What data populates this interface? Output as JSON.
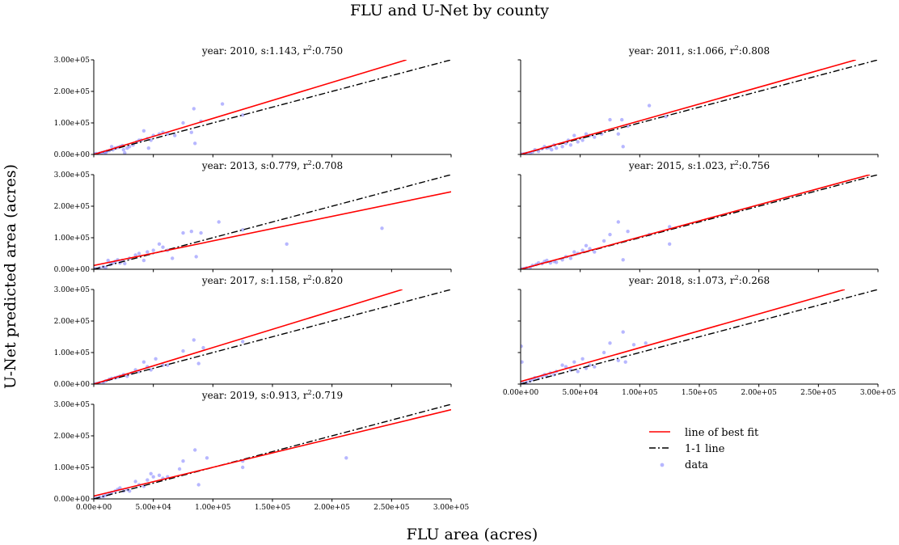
{
  "figure": {
    "title": "FLU and U-Net by county",
    "xlabel": "FLU area (acres)",
    "ylabel": "U-Net predicted area (acres)"
  },
  "legend": {
    "items": [
      {
        "label": "line of best fit",
        "color": "#ff0000",
        "style": "solid"
      },
      {
        "label": "1-1 line",
        "color": "#000000",
        "style": "dashdot"
      },
      {
        "label": "data",
        "color": "#7b7bff",
        "style": "marker"
      }
    ]
  },
  "colors": {
    "fit": "#ff0000",
    "identity": "#000000",
    "data": "#7b7bff"
  },
  "chart_data": [
    {
      "type": "scatter",
      "year_label": "year: 2010, s:1.143, r",
      "r2_value": ":0.750",
      "slope": 1.143,
      "xlim": [
        0,
        300000
      ],
      "ylim": [
        0,
        300000
      ],
      "yticks": [
        "0.00e+00",
        "1.00e+05",
        "2.00e+05",
        "3.00e+05"
      ],
      "xticks": [],
      "fit": {
        "intercept": 0
      },
      "points": [
        [
          1000,
          1000
        ],
        [
          2000,
          2500
        ],
        [
          3000,
          1500
        ],
        [
          5000,
          4000
        ],
        [
          7000,
          6000
        ],
        [
          9000,
          8000
        ],
        [
          10000,
          5000
        ],
        [
          11000,
          10000
        ],
        [
          13000,
          12000
        ],
        [
          15000,
          25000
        ],
        [
          16000,
          15000
        ],
        [
          18000,
          20000
        ],
        [
          20000,
          22000
        ],
        [
          22000,
          25000
        ],
        [
          24000,
          28000
        ],
        [
          25000,
          15000
        ],
        [
          26000,
          5000
        ],
        [
          28000,
          20000
        ],
        [
          30000,
          25000
        ],
        [
          33000,
          30000
        ],
        [
          36000,
          40000
        ],
        [
          38000,
          45000
        ],
        [
          40000,
          45000
        ],
        [
          42000,
          75000
        ],
        [
          45000,
          50000
        ],
        [
          46000,
          20000
        ],
        [
          48000,
          45000
        ],
        [
          50000,
          60000
        ],
        [
          55000,
          65000
        ],
        [
          58000,
          70000
        ],
        [
          62000,
          65000
        ],
        [
          68000,
          60000
        ],
        [
          75000,
          100000
        ],
        [
          82000,
          70000
        ],
        [
          84000,
          145000
        ],
        [
          85000,
          35000
        ],
        [
          90000,
          105000
        ],
        [
          108000,
          160000
        ],
        [
          125000,
          125000
        ]
      ]
    },
    {
      "type": "scatter",
      "year_label": "year: 2011, s:1.066, r",
      "r2_value": ":0.808",
      "slope": 1.066,
      "xlim": [
        0,
        300000
      ],
      "ylim": [
        0,
        300000
      ],
      "yticks": [],
      "xticks": [],
      "fit": {
        "intercept": 0
      },
      "points": [
        [
          1000,
          1000
        ],
        [
          3000,
          2000
        ],
        [
          5000,
          3000
        ],
        [
          8000,
          5000
        ],
        [
          10000,
          8000
        ],
        [
          12000,
          15000
        ],
        [
          15000,
          10000
        ],
        [
          18000,
          18000
        ],
        [
          20000,
          25000
        ],
        [
          22000,
          20000
        ],
        [
          24000,
          22000
        ],
        [
          26000,
          15000
        ],
        [
          28000,
          30000
        ],
        [
          30000,
          20000
        ],
        [
          35000,
          25000
        ],
        [
          38000,
          35000
        ],
        [
          40000,
          45000
        ],
        [
          42000,
          30000
        ],
        [
          45000,
          60000
        ],
        [
          48000,
          40000
        ],
        [
          52000,
          45000
        ],
        [
          55000,
          65000
        ],
        [
          58000,
          60000
        ],
        [
          62000,
          55000
        ],
        [
          68000,
          65000
        ],
        [
          75000,
          110000
        ],
        [
          82000,
          65000
        ],
        [
          85000,
          110000
        ],
        [
          86000,
          25000
        ],
        [
          90000,
          90000
        ],
        [
          108000,
          155000
        ],
        [
          122000,
          120000
        ]
      ]
    },
    {
      "type": "scatter",
      "year_label": "year: 2013, s:0.779, r",
      "r2_value": ":0.708",
      "slope": 0.779,
      "xlim": [
        0,
        300000
      ],
      "ylim": [
        0,
        300000
      ],
      "yticks": [
        "0.00e+00",
        "1.00e+05",
        "2.00e+05",
        "3.00e+05"
      ],
      "xticks": [],
      "fit": {
        "intercept": 12000
      },
      "points": [
        [
          1000,
          2000
        ],
        [
          3000,
          1000
        ],
        [
          5000,
          4000
        ],
        [
          8000,
          8000
        ],
        [
          10000,
          5000
        ],
        [
          12000,
          28000
        ],
        [
          14000,
          15000
        ],
        [
          16000,
          20000
        ],
        [
          18000,
          25000
        ],
        [
          20000,
          30000
        ],
        [
          22000,
          20000
        ],
        [
          24000,
          28000
        ],
        [
          26000,
          18000
        ],
        [
          30000,
          35000
        ],
        [
          35000,
          45000
        ],
        [
          38000,
          50000
        ],
        [
          42000,
          28000
        ],
        [
          45000,
          55000
        ],
        [
          50000,
          60000
        ],
        [
          55000,
          80000
        ],
        [
          58000,
          70000
        ],
        [
          62000,
          60000
        ],
        [
          66000,
          35000
        ],
        [
          75000,
          115000
        ],
        [
          82000,
          120000
        ],
        [
          86000,
          40000
        ],
        [
          90000,
          115000
        ],
        [
          105000,
          150000
        ],
        [
          125000,
          125000
        ],
        [
          162000,
          80000
        ],
        [
          242000,
          130000
        ]
      ]
    },
    {
      "type": "scatter",
      "year_label": "year: 2015, s:1.023, r",
      "r2_value": ":0.756",
      "slope": 1.023,
      "xlim": [
        0,
        300000
      ],
      "ylim": [
        0,
        300000
      ],
      "yticks": [],
      "xticks": [],
      "fit": {
        "intercept": 0
      },
      "points": [
        [
          1000,
          1000
        ],
        [
          3000,
          2000
        ],
        [
          5000,
          4000
        ],
        [
          8000,
          6000
        ],
        [
          10000,
          12000
        ],
        [
          13000,
          15000
        ],
        [
          15000,
          20000
        ],
        [
          18000,
          18000
        ],
        [
          20000,
          25000
        ],
        [
          22000,
          28000
        ],
        [
          25000,
          20000
        ],
        [
          28000,
          25000
        ],
        [
          30000,
          22000
        ],
        [
          35000,
          30000
        ],
        [
          38000,
          40000
        ],
        [
          42000,
          35000
        ],
        [
          45000,
          55000
        ],
        [
          48000,
          50000
        ],
        [
          52000,
          60000
        ],
        [
          55000,
          75000
        ],
        [
          58000,
          65000
        ],
        [
          62000,
          55000
        ],
        [
          70000,
          90000
        ],
        [
          75000,
          110000
        ],
        [
          82000,
          150000
        ],
        [
          86000,
          30000
        ],
        [
          90000,
          120000
        ],
        [
          108000,
          110000
        ],
        [
          125000,
          80000
        ],
        [
          125000,
          135000
        ]
      ]
    },
    {
      "type": "scatter",
      "year_label": "year: 2017, s:1.158, r",
      "r2_value": ":0.820",
      "slope": 1.158,
      "xlim": [
        0,
        300000
      ],
      "ylim": [
        0,
        300000
      ],
      "yticks": [
        "0.00e+00",
        "1.00e+05",
        "2.00e+05",
        "3.00e+05"
      ],
      "xticks": [],
      "fit": {
        "intercept": 0
      },
      "points": [
        [
          1000,
          1000
        ],
        [
          3000,
          2000
        ],
        [
          5000,
          4000
        ],
        [
          8000,
          6000
        ],
        [
          10000,
          10000
        ],
        [
          13000,
          15000
        ],
        [
          15000,
          18000
        ],
        [
          18000,
          20000
        ],
        [
          20000,
          22000
        ],
        [
          22000,
          25000
        ],
        [
          25000,
          30000
        ],
        [
          28000,
          25000
        ],
        [
          32000,
          35000
        ],
        [
          35000,
          45000
        ],
        [
          38000,
          40000
        ],
        [
          42000,
          70000
        ],
        [
          45000,
          55000
        ],
        [
          48000,
          45000
        ],
        [
          52000,
          80000
        ],
        [
          58000,
          60000
        ],
        [
          62000,
          60000
        ],
        [
          75000,
          105000
        ],
        [
          84000,
          140000
        ],
        [
          88000,
          65000
        ],
        [
          92000,
          115000
        ],
        [
          125000,
          135000
        ]
      ]
    },
    {
      "type": "scatter",
      "year_label": "year: 2018, s:1.073, r",
      "r2_value": ":0.268",
      "slope": 1.073,
      "xlim": [
        0,
        300000
      ],
      "ylim": [
        0,
        300000
      ],
      "yticks": [],
      "xticks": [
        "0.00e+00",
        "5.00e+04",
        "1.00e+05",
        "1.50e+05",
        "2.00e+05",
        "2.50e+05",
        "3.00e+05"
      ],
      "fit": {
        "intercept": 8000
      },
      "points": [
        [
          500,
          120000
        ],
        [
          1000,
          70000
        ],
        [
          2000,
          2000
        ],
        [
          5000,
          5000
        ],
        [
          8000,
          10000
        ],
        [
          10000,
          15000
        ],
        [
          12000,
          20000
        ],
        [
          15000,
          18000
        ],
        [
          18000,
          25000
        ],
        [
          20000,
          30000
        ],
        [
          22000,
          25000
        ],
        [
          25000,
          35000
        ],
        [
          28000,
          30000
        ],
        [
          30000,
          40000
        ],
        [
          35000,
          60000
        ],
        [
          38000,
          55000
        ],
        [
          42000,
          45000
        ],
        [
          45000,
          70000
        ],
        [
          48000,
          40000
        ],
        [
          52000,
          80000
        ],
        [
          55000,
          50000
        ],
        [
          58000,
          60000
        ],
        [
          62000,
          55000
        ],
        [
          70000,
          100000
        ],
        [
          75000,
          130000
        ],
        [
          82000,
          75000
        ],
        [
          86000,
          165000
        ],
        [
          88000,
          70000
        ],
        [
          95000,
          125000
        ],
        [
          105000,
          130000
        ]
      ]
    },
    {
      "type": "scatter",
      "year_label": "year: 2019, s:0.913, r",
      "r2_value": ":0.719",
      "slope": 0.913,
      "xlim": [
        0,
        300000
      ],
      "ylim": [
        0,
        300000
      ],
      "yticks": [
        "0.00e+00",
        "1.00e+05",
        "2.00e+05",
        "3.00e+05"
      ],
      "xticks": [
        "0.00e+00",
        "5.00e+04",
        "1.00e+05",
        "1.50e+05",
        "2.00e+05",
        "2.50e+05",
        "3.00e+05"
      ],
      "fit": {
        "intercept": 9000
      },
      "points": [
        [
          1000,
          1000
        ],
        [
          3000,
          2000
        ],
        [
          5000,
          5000
        ],
        [
          8000,
          8000
        ],
        [
          10000,
          12000
        ],
        [
          13000,
          15000
        ],
        [
          15000,
          20000
        ],
        [
          18000,
          25000
        ],
        [
          20000,
          30000
        ],
        [
          22000,
          35000
        ],
        [
          25000,
          25000
        ],
        [
          28000,
          30000
        ],
        [
          30000,
          25000
        ],
        [
          35000,
          55000
        ],
        [
          38000,
          45000
        ],
        [
          42000,
          40000
        ],
        [
          45000,
          60000
        ],
        [
          48000,
          80000
        ],
        [
          50000,
          70000
        ],
        [
          55000,
          75000
        ],
        [
          58000,
          65000
        ],
        [
          62000,
          70000
        ],
        [
          72000,
          95000
        ],
        [
          75000,
          120000
        ],
        [
          85000,
          155000
        ],
        [
          88000,
          45000
        ],
        [
          95000,
          130000
        ],
        [
          125000,
          120000
        ],
        [
          125000,
          100000
        ],
        [
          212000,
          130000
        ]
      ]
    }
  ]
}
